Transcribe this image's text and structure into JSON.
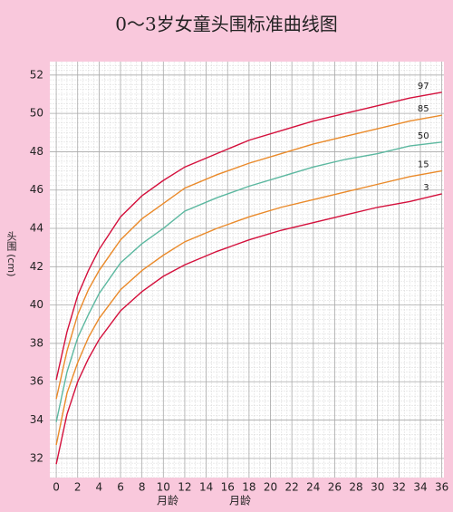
{
  "chart_data": {
    "type": "line",
    "title": "0～3岁女童头围标准曲线图",
    "xlabel": "月龄",
    "ylabel": "头围 (cm)",
    "x": [
      0,
      1,
      2,
      3,
      4,
      6,
      8,
      10,
      12,
      15,
      18,
      21,
      24,
      27,
      30,
      33,
      36
    ],
    "series": [
      {
        "name": "97",
        "color": "#d4103c",
        "values": [
          36.1,
          38.6,
          40.5,
          41.8,
          42.9,
          44.6,
          45.7,
          46.5,
          47.2,
          47.9,
          48.6,
          49.1,
          49.6,
          50.0,
          50.4,
          50.8,
          51.1
        ]
      },
      {
        "name": "85",
        "color": "#ea8a2a",
        "values": [
          35.1,
          37.6,
          39.5,
          40.8,
          41.8,
          43.4,
          44.5,
          45.3,
          46.1,
          46.8,
          47.4,
          47.9,
          48.4,
          48.8,
          49.2,
          49.6,
          49.9
        ]
      },
      {
        "name": "50",
        "color": "#5cb8a0",
        "values": [
          33.9,
          36.5,
          38.3,
          39.5,
          40.6,
          42.2,
          43.2,
          44.0,
          44.9,
          45.6,
          46.2,
          46.7,
          47.2,
          47.6,
          47.9,
          48.3,
          48.5
        ]
      },
      {
        "name": "15",
        "color": "#ea8a2a",
        "values": [
          32.7,
          35.4,
          37.0,
          38.3,
          39.3,
          40.8,
          41.8,
          42.6,
          43.3,
          44.0,
          44.6,
          45.1,
          45.5,
          45.9,
          46.3,
          46.7,
          47.0
        ]
      },
      {
        "name": "3",
        "color": "#d4103c",
        "values": [
          31.7,
          34.3,
          36.0,
          37.2,
          38.2,
          39.7,
          40.7,
          41.5,
          42.1,
          42.8,
          43.4,
          43.9,
          44.3,
          44.7,
          45.1,
          45.4,
          45.8
        ]
      }
    ],
    "xlim": [
      -0.6,
      36.2
    ],
    "ylim": [
      31,
      52.7
    ],
    "xticks": [
      0,
      2,
      4,
      6,
      8,
      10,
      12,
      14,
      16,
      18,
      20,
      22,
      24,
      26,
      28,
      30,
      32,
      34,
      36
    ],
    "yticks": [
      32,
      34,
      36,
      38,
      40,
      42,
      44,
      46,
      48,
      50,
      52
    ],
    "grid": true
  }
}
